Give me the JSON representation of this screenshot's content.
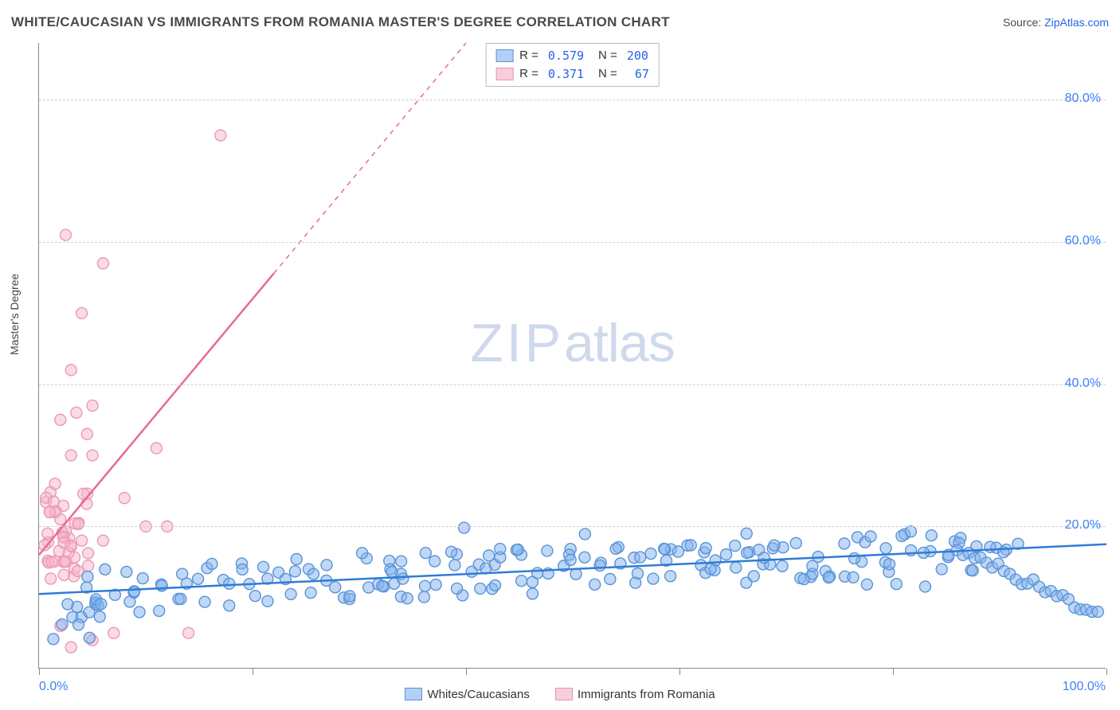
{
  "title": "WHITE/CAUCASIAN VS IMMIGRANTS FROM ROMANIA MASTER'S DEGREE CORRELATION CHART",
  "source_label": "Source: ",
  "source_link_text": "ZipAtlas.com",
  "y_axis_title": "Master's Degree",
  "watermark_zip": "ZIP",
  "watermark_atlas": "atlas",
  "chart": {
    "type": "scatter",
    "xlim": [
      0,
      100
    ],
    "ylim": [
      0,
      88
    ],
    "y_gridlines": [
      20,
      40,
      60,
      80
    ],
    "y_tick_labels": [
      "20.0%",
      "40.0%",
      "60.0%",
      "80.0%"
    ],
    "x_tick_positions": [
      0,
      20,
      40,
      60,
      80,
      100
    ],
    "x_axis_labels": {
      "left": "0.0%",
      "right": "100.0%"
    },
    "grid_color": "#d0d0d0",
    "axis_color": "#888888",
    "background_color": "#ffffff",
    "label_color": "#3b82f6",
    "marker_radius": 7,
    "marker_stroke_width": 1.4,
    "line_width": 2.5,
    "series": [
      {
        "name": "Whites/Caucasians",
        "color_fill": "rgba(129,178,238,0.5)",
        "color_stroke": "#5a93d6",
        "line_color": "#2f7cd6",
        "R": "0.579",
        "N": "200",
        "trend": {
          "x1": 0,
          "y1": 10.5,
          "x2": 100,
          "y2": 17.5
        },
        "trend_dash_after": null
      },
      {
        "name": "Immigrants from Romania",
        "color_fill": "rgba(247,182,204,0.5)",
        "color_stroke": "#ea9ab2",
        "line_color": "#e86b91",
        "R": "0.371",
        "N": "67",
        "trend": {
          "x1": 0,
          "y1": 16,
          "x2": 40,
          "y2": 88
        },
        "trend_dash_after": 22
      }
    ]
  },
  "legend_top": {
    "R_label": "R =",
    "N_label": "N ="
  },
  "legend_bottom": {
    "series1": "Whites/Caucasians",
    "series2": "Immigrants from Romania"
  }
}
